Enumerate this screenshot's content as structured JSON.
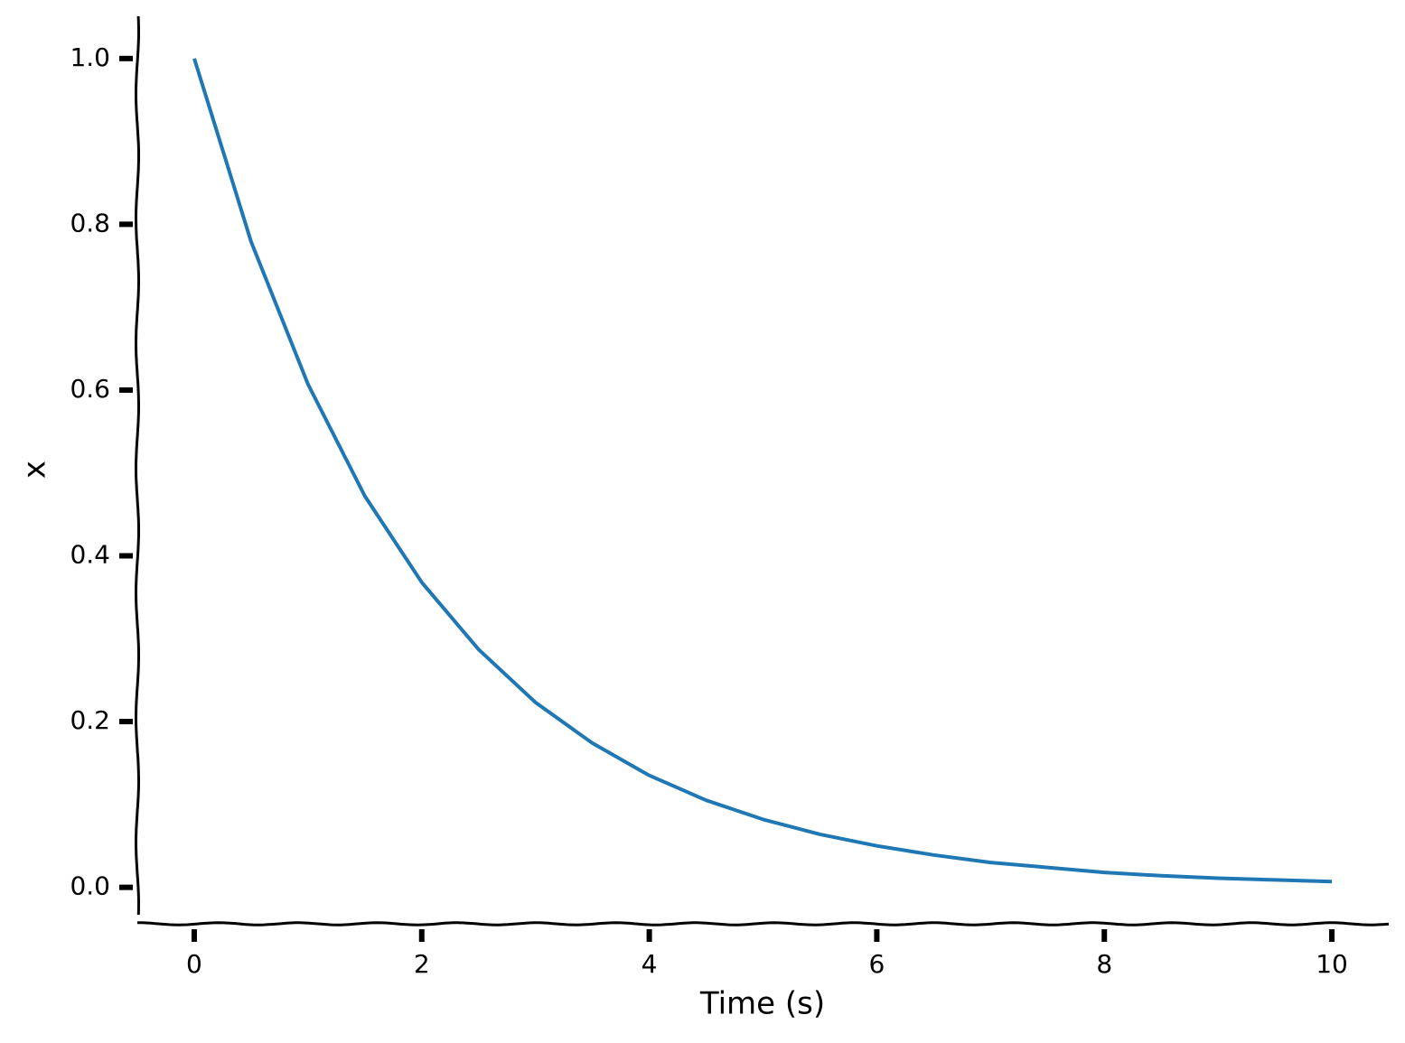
{
  "chart_data": {
    "type": "line",
    "xlabel": "Time (s)",
    "ylabel": "x",
    "x": [
      0,
      0.5,
      1,
      1.5,
      2,
      2.5,
      3,
      3.5,
      4,
      4.5,
      5,
      5.5,
      6,
      6.5,
      7,
      7.5,
      8,
      8.5,
      9,
      9.5,
      10
    ],
    "series": [
      {
        "color": "#1f77b4",
        "values": [
          1,
          0.779,
          0.607,
          0.472,
          0.368,
          0.287,
          0.223,
          0.174,
          0.135,
          0.105,
          0.082,
          0.064,
          0.05,
          0.039,
          0.03,
          0.024,
          0.018,
          0.014,
          0.011,
          0.009,
          0.007
        ]
      }
    ],
    "xlim": [
      -0.5,
      10.5
    ],
    "xticks": [
      0,
      2,
      4,
      6,
      8,
      10
    ],
    "ylim": [
      -0.044,
      1.051
    ],
    "yticks": [
      {
        "value": 0,
        "label": "0.0"
      },
      {
        "value": 0.2,
        "label": "0.2"
      },
      {
        "value": 0.4,
        "label": "0.4"
      },
      {
        "value": 0.6,
        "label": "0.6"
      },
      {
        "value": 0.8,
        "label": "0.8"
      },
      {
        "value": 1,
        "label": "1.0"
      }
    ]
  }
}
